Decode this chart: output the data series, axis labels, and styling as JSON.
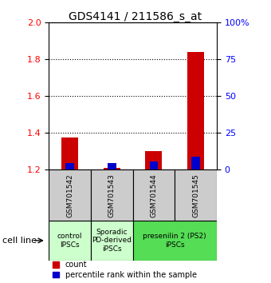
{
  "title": "GDS4141 / 211586_s_at",
  "samples": [
    "GSM701542",
    "GSM701543",
    "GSM701544",
    "GSM701545"
  ],
  "red_values": [
    1.375,
    1.21,
    1.3,
    1.84
  ],
  "blue_values": [
    1.235,
    1.235,
    1.245,
    1.27
  ],
  "ylim_left": [
    1.2,
    2.0
  ],
  "ylim_right": [
    0,
    100
  ],
  "yticks_left": [
    1.2,
    1.4,
    1.6,
    1.8,
    2.0
  ],
  "yticks_right": [
    0,
    25,
    50,
    75,
    100
  ],
  "ytick_labels_right": [
    "0",
    "25",
    "50",
    "75",
    "100%"
  ],
  "red_color": "#cc0000",
  "blue_color": "#0000cc",
  "red_bar_width": 0.4,
  "blue_bar_width": 0.2,
  "group_info": [
    [
      0,
      0,
      "control\nIPSCs",
      "#ccffcc"
    ],
    [
      1,
      1,
      "Sporadic\nPD-derived\niPSCs",
      "#ccffcc"
    ],
    [
      2,
      3,
      "presenilin 2 (PS2)\niPSCs",
      "#55dd55"
    ]
  ],
  "sample_box_color": "#cccccc",
  "cell_line_label": "cell line",
  "legend_red": "count",
  "legend_blue": "percentile rank within the sample",
  "baseline": 1.2,
  "title_fontsize": 10,
  "tick_fontsize": 8,
  "sample_fontsize": 6.5,
  "group_fontsize": 6.5,
  "legend_fontsize": 7,
  "cell_line_fontsize": 8
}
